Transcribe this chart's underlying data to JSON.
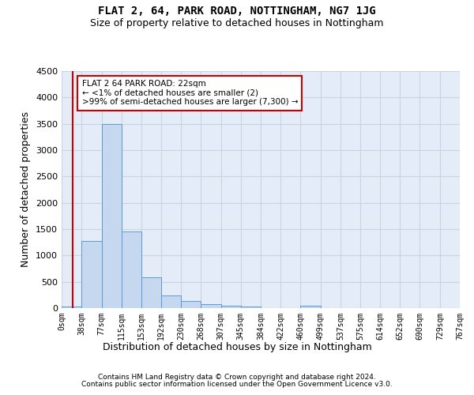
{
  "title": "FLAT 2, 64, PARK ROAD, NOTTINGHAM, NG7 1JG",
  "subtitle": "Size of property relative to detached houses in Nottingham",
  "xlabel": "Distribution of detached houses by size in Nottingham",
  "ylabel": "Number of detached properties",
  "bar_edges": [
    0,
    38,
    77,
    115,
    153,
    192,
    230,
    268,
    307,
    345,
    384,
    422,
    460,
    499,
    537,
    575,
    614,
    652,
    690,
    729,
    767
  ],
  "bar_heights": [
    30,
    1270,
    3500,
    1450,
    580,
    240,
    130,
    80,
    40,
    30,
    0,
    0,
    50,
    0,
    0,
    0,
    0,
    0,
    0,
    0
  ],
  "bar_color": "#c5d8f0",
  "bar_edge_color": "#5b9bd5",
  "grid_color": "#c8d4e4",
  "background_color": "#e4ecf7",
  "ylim": [
    0,
    4500
  ],
  "yticks": [
    0,
    500,
    1000,
    1500,
    2000,
    2500,
    3000,
    3500,
    4000,
    4500
  ],
  "property_line_x": 22,
  "property_line_color": "#cc0000",
  "annotation_text": "FLAT 2 64 PARK ROAD: 22sqm\n← <1% of detached houses are smaller (2)\n>99% of semi-detached houses are larger (7,300) →",
  "annotation_box_color": "#cc0000",
  "footer_line1": "Contains HM Land Registry data © Crown copyright and database right 2024.",
  "footer_line2": "Contains public sector information licensed under the Open Government Licence v3.0."
}
